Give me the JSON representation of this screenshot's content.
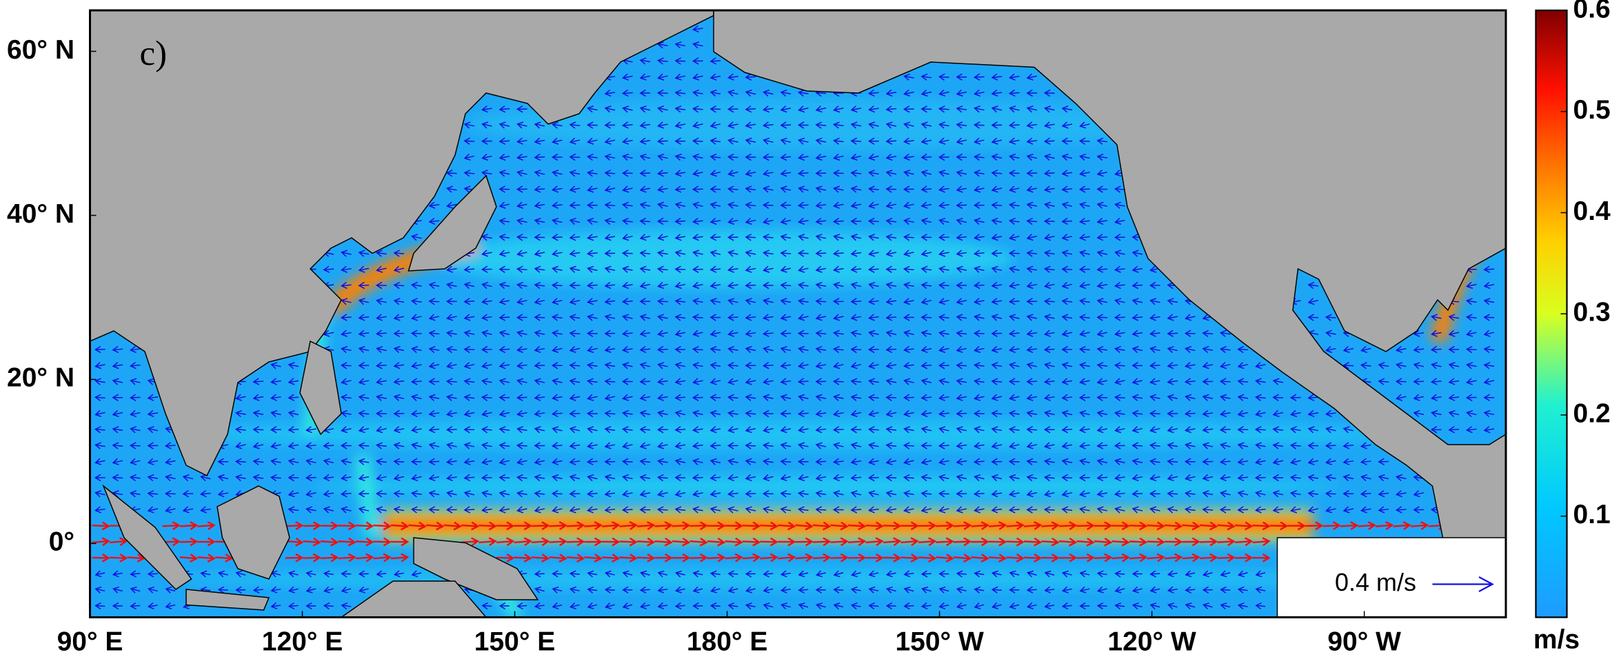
{
  "map": {
    "panel_label": "c)",
    "lat_lim": [
      -9,
      65
    ],
    "lon_lim": [
      90,
      290
    ],
    "lat_ticks": [
      {
        "value": 60,
        "label": "60° N"
      },
      {
        "value": 40,
        "label": "40° N"
      },
      {
        "value": 20,
        "label": "20° N"
      },
      {
        "value": 0,
        "label": "0°"
      }
    ],
    "lon_ticks": [
      {
        "value": 90,
        "label": "90° E"
      },
      {
        "value": 120,
        "label": "120° E"
      },
      {
        "value": 150,
        "label": "150° E"
      },
      {
        "value": 180,
        "label": "180° E"
      },
      {
        "value": 210,
        "label": "150° W"
      },
      {
        "value": 240,
        "label": "120° W"
      },
      {
        "value": 270,
        "label": "90° W"
      }
    ],
    "colorbar": {
      "lim": [
        0,
        0.6
      ],
      "ticks": [
        0.1,
        0.2,
        0.3,
        0.4,
        0.5,
        0.6
      ],
      "label": "m/s"
    },
    "reference_vector": {
      "label": "0.4 m/s"
    }
  }
}
